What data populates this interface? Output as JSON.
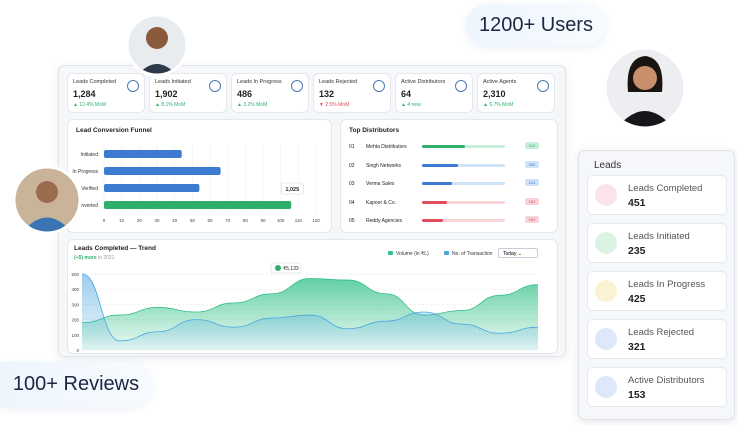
{
  "badges": {
    "users": "1200+ Users",
    "reviews": "100+ Reviews"
  },
  "kpis": [
    {
      "label": "Leads Completed",
      "value": "1,284",
      "change": "▲ 12.4% MoM",
      "trend": "up"
    },
    {
      "label": "Leads Initiated",
      "value": "1,902",
      "change": "▲ 8.1% MoM",
      "trend": "up"
    },
    {
      "label": "Leads In Progress",
      "value": "486",
      "change": "▲ 3.2% MoM",
      "trend": "up"
    },
    {
      "label": "Leads Rejected",
      "value": "132",
      "change": "▼ 2.5% MoM",
      "trend": "down"
    },
    {
      "label": "Active Distributors",
      "value": "64",
      "change": "▲ 4 new",
      "trend": "up"
    },
    {
      "label": "Active Agents",
      "value": "2,310",
      "change": "▲ 6.7% MoM",
      "trend": "up"
    }
  ],
  "funnel": {
    "type": "bar",
    "title": "Lead Conversion Funnel",
    "categories": [
      "Initiated",
      "In Progress",
      "Verified",
      "Converted"
    ],
    "values": [
      44,
      66,
      54,
      106
    ],
    "colors": [
      "#3d7bd1",
      "#3d7bd1",
      "#3d7bd1",
      "#2fb06a"
    ],
    "tooltip": "1,025",
    "xlim": [
      0,
      120
    ],
    "xticks": [
      0,
      10,
      20,
      30,
      40,
      50,
      60,
      70,
      80,
      90,
      100,
      110,
      120
    ],
    "grid": true
  },
  "distributors": {
    "title": "Top Distributors",
    "max": 600,
    "rows": [
      {
        "rank": "01",
        "name": "Mehta Distributors",
        "value": 312,
        "color": "#2fb06a",
        "track": "#c9efdc"
      },
      {
        "rank": "02",
        "name": "Singh Networks",
        "value": 260,
        "color": "#3d7bd1",
        "track": "#cfe2f7"
      },
      {
        "rank": "03",
        "name": "Verma Sales",
        "value": 214,
        "color": "#3d7bd1",
        "track": "#cfe2f7"
      },
      {
        "rank": "04",
        "name": "Kapoor & Co.",
        "value": 181,
        "color": "#e24b5b",
        "track": "#f8d3d8"
      },
      {
        "rank": "05",
        "name": "Reddy Agencies",
        "value": 150,
        "color": "#e24b5b",
        "track": "#f8d3d8"
      }
    ]
  },
  "trend": {
    "type": "area",
    "title": "Leads Completed — Trend",
    "subtitle_highlight": "(+5) more",
    "subtitle": "in 2021",
    "dropdown": "Today",
    "tooltip": "₹5,133",
    "ylim": [
      0,
      500
    ],
    "yticks": [
      0,
      100,
      200,
      300,
      400,
      500
    ],
    "grid": true,
    "series": [
      {
        "name": "Volume (in ₹L)",
        "color": "#2fc086",
        "values": [
          180,
          230,
          280,
          250,
          310,
          370,
          470,
          460,
          370,
          230,
          260,
          360,
          430
        ]
      },
      {
        "name": "No. of Transaction",
        "color": "#4aa6e0",
        "values": [
          500,
          60,
          120,
          200,
          150,
          210,
          230,
          140,
          190,
          250,
          170,
          110,
          150
        ]
      }
    ]
  },
  "leads_panel": {
    "title": "Leads",
    "items": [
      {
        "label": "Leads Completed",
        "value": "451",
        "color": "#fbe3ea"
      },
      {
        "label": "Leads Initiated",
        "value": "235",
        "color": "#dcf3e4"
      },
      {
        "label": "Leads In Progress",
        "value": "425",
        "color": "#fbf1d3"
      },
      {
        "label": "Leads Rejected",
        "value": "321",
        "color": "#dde9f8"
      },
      {
        "label": "Active Distributors",
        "value": "153",
        "color": "#dde9f8"
      }
    ]
  }
}
